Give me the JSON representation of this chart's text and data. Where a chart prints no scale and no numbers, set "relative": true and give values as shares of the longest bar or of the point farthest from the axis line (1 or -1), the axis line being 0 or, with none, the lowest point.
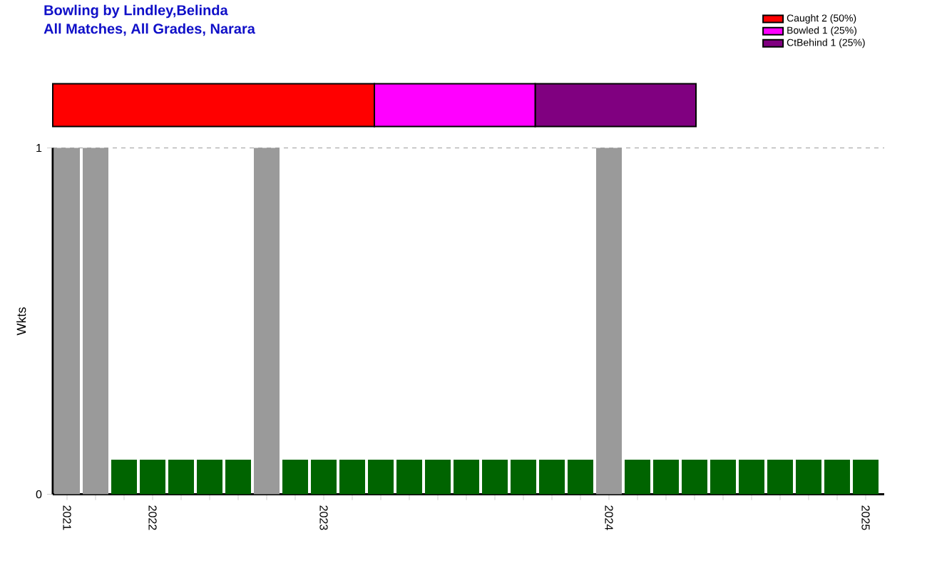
{
  "chart_data": [
    {
      "type": "bar",
      "ylabel": "Wkts",
      "categories": [
        "2021",
        null,
        null,
        "2022",
        null,
        null,
        null,
        null,
        null,
        "2023",
        null,
        null,
        null,
        null,
        null,
        null,
        null,
        null,
        null,
        "2024",
        null,
        null,
        null,
        null,
        null,
        null,
        null,
        null,
        "2025"
      ],
      "values": [
        1,
        1,
        0.1,
        0.1,
        0.1,
        0.1,
        0.1,
        1,
        0.1,
        0.1,
        0.1,
        0.1,
        0.1,
        0.1,
        0.1,
        0.1,
        0.1,
        0.1,
        0.1,
        1,
        0.1,
        0.1,
        0.1,
        0.1,
        0.1,
        0.1,
        0.1,
        0.1,
        0.1
      ],
      "colors": [
        "#9a9a9a",
        "#9a9a9a",
        "#006400",
        "#006400",
        "#006400",
        "#006400",
        "#006400",
        "#9a9a9a",
        "#006400",
        "#006400",
        "#006400",
        "#006400",
        "#006400",
        "#006400",
        "#006400",
        "#006400",
        "#006400",
        "#006400",
        "#006400",
        "#9a9a9a",
        "#006400",
        "#006400",
        "#006400",
        "#006400",
        "#006400",
        "#006400",
        "#006400",
        "#006400",
        "#006400"
      ],
      "ylim": [
        0,
        1
      ],
      "yticks": [
        0,
        1
      ],
      "grid": "y"
    },
    {
      "type": "bar",
      "title": "Bowling by Lindley,Belinda",
      "subtitle": "All Matches, All Grades, Narara",
      "orientation": "horizontal",
      "stacked": true,
      "relative": true,
      "categories": [
        null
      ],
      "legend": "top right",
      "series": [
        {
          "name": "Caught 2 (50%)",
          "color": "#ff0000",
          "values": [
            0.5
          ]
        },
        {
          "name": "Bowled 1 (25%)",
          "color": "#ff00ff",
          "values": [
            0.25
          ]
        },
        {
          "name": "CtBehind 1 (25%)",
          "color": "#800080",
          "values": [
            0.25
          ]
        }
      ]
    }
  ]
}
